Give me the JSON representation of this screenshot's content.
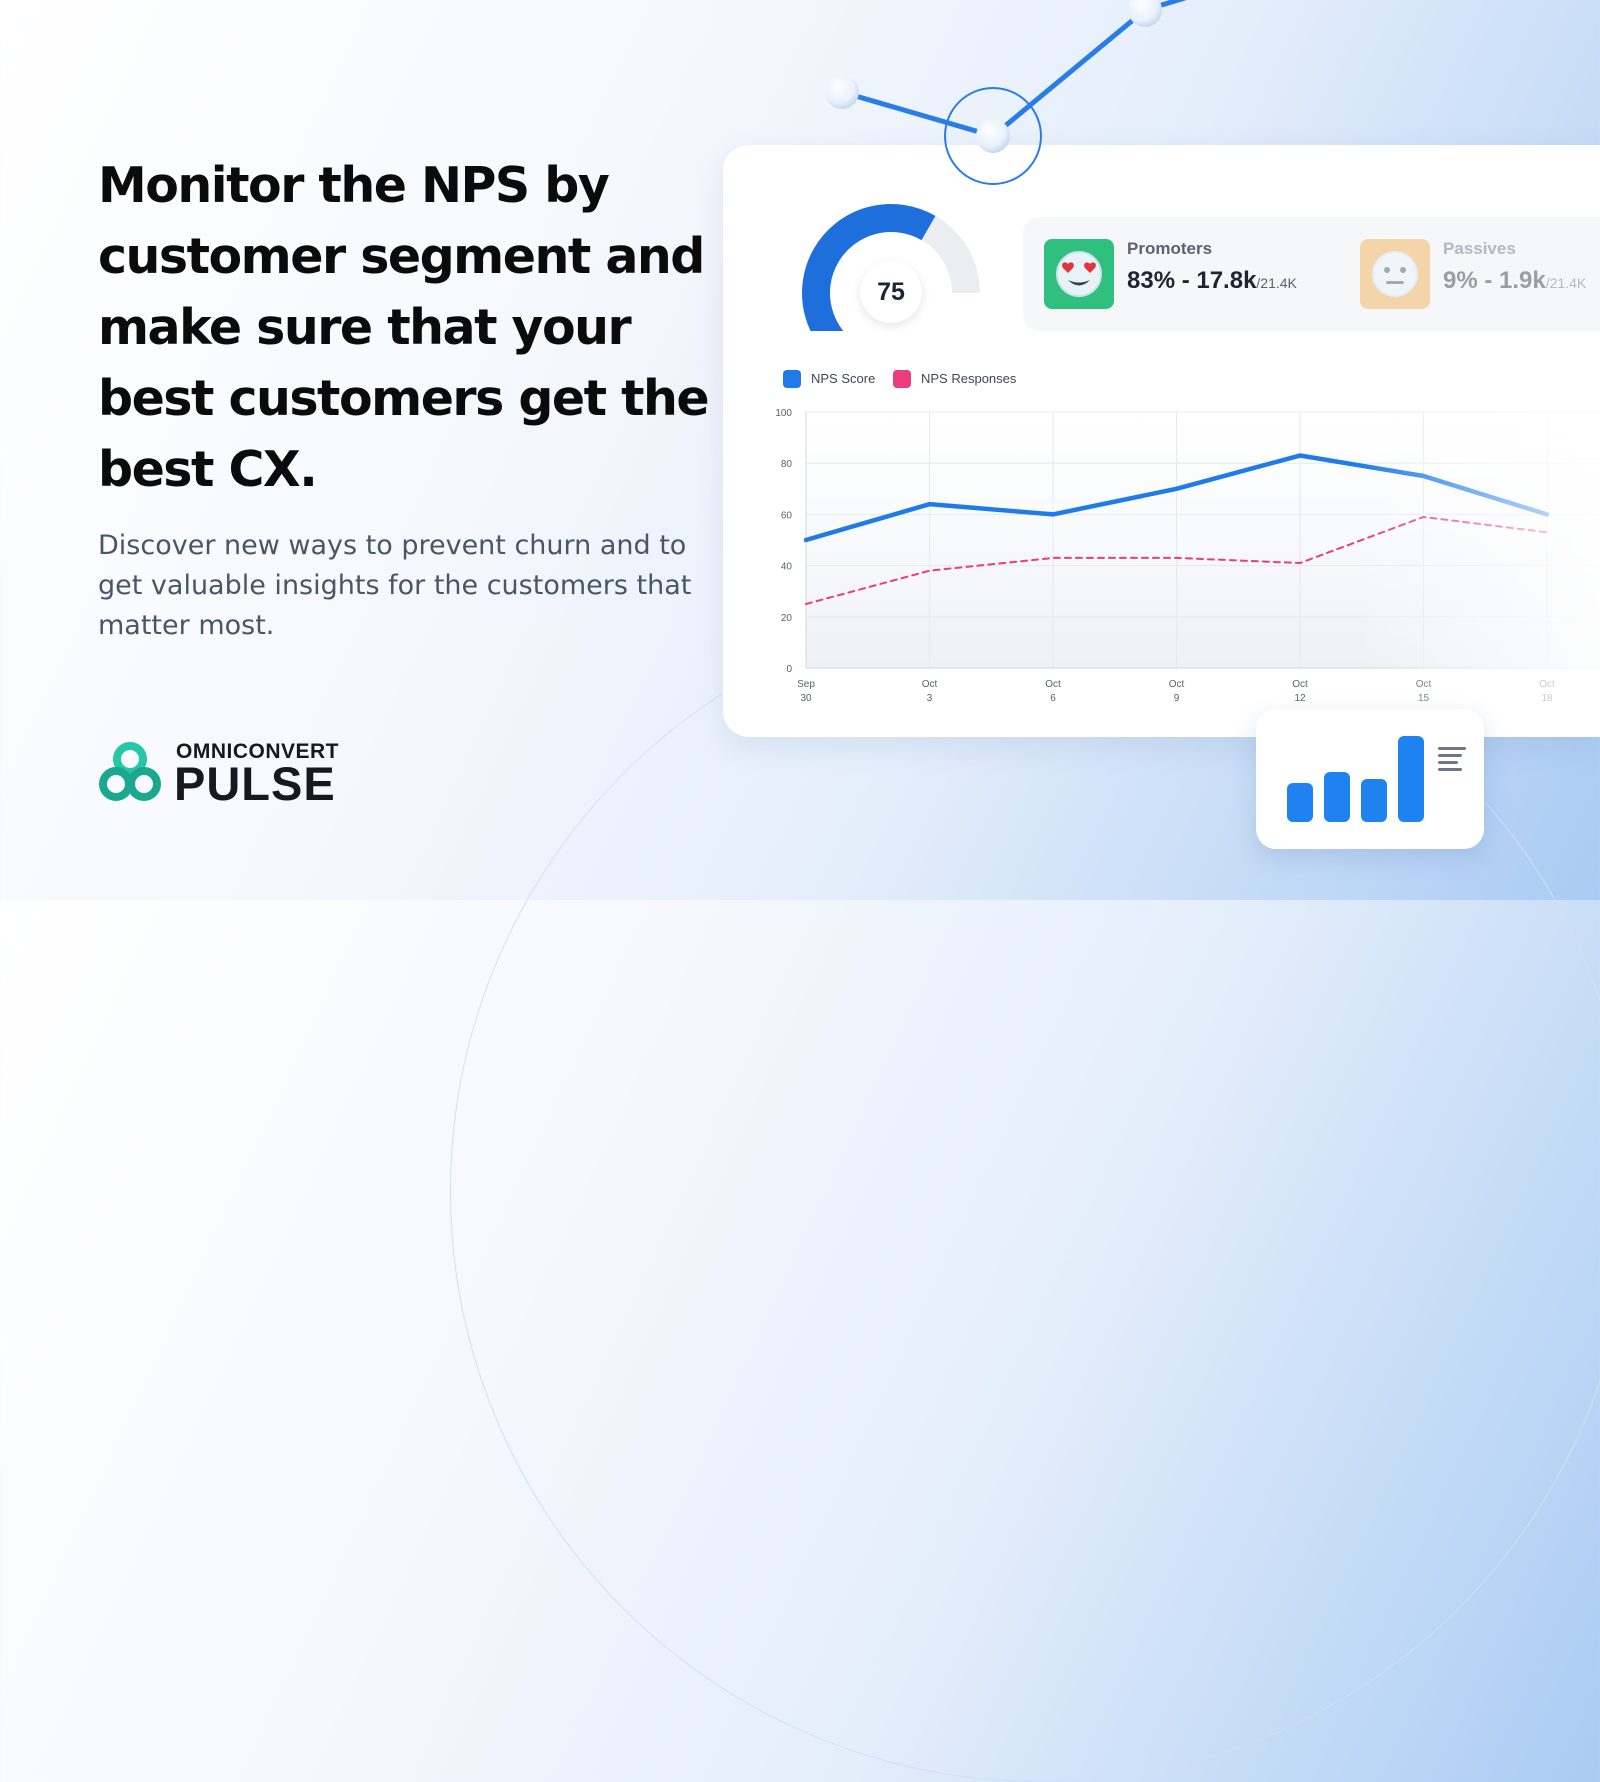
{
  "hero": {
    "headline": "Monitor the NPS by customer segment and make sure that your best customers get the best CX.",
    "subhead": "Discover new ways to prevent churn and to get valuable insights for the customers that matter most."
  },
  "logo": {
    "top_text": "OMNICONVERT",
    "main_text": "PULSE",
    "colors": [
      "#1aa88f",
      "#25c7a6"
    ]
  },
  "dashboard": {
    "gauge": {
      "value": "75",
      "fill_fraction": 0.75,
      "fill_color": "#1e6fdc",
      "track_color": "#ebedf1"
    },
    "stats": [
      {
        "icon": "heart-eyes-emoji-icon",
        "icon_bg": "#2fbf7f",
        "title": "Promoters",
        "value": "83% - 17.8k",
        "suffix": "/21.4K"
      },
      {
        "icon": "neutral-face-emoji-icon",
        "icon_bg": "#f2a53d",
        "title": "Passives",
        "value": "9% - 1.9k",
        "suffix": "/21.4K"
      }
    ]
  },
  "chart_data": {
    "type": "line",
    "title": "",
    "xlabel": "",
    "ylabel": "",
    "ylim": [
      0,
      100
    ],
    "yticks": [
      "0",
      "20",
      "40",
      "60",
      "80",
      "100"
    ],
    "x_ticks": [
      {
        "month": "Sep",
        "day": "30"
      },
      {
        "month": "Oct",
        "day": "3"
      },
      {
        "month": "Oct",
        "day": "6"
      },
      {
        "month": "Oct",
        "day": "9"
      },
      {
        "month": "Oct",
        "day": "12"
      },
      {
        "month": "Oct",
        "day": "15"
      },
      {
        "month": "Oct",
        "day": "18"
      }
    ],
    "grid": true,
    "legend_position": "top-left",
    "series": [
      {
        "name": "NPS Score",
        "color": "#1e7be8",
        "style": "solid",
        "x": [
          "Sep 30",
          "Oct 3",
          "Oct 6",
          "Oct 9",
          "Oct 12",
          "Oct 15",
          "Oct 18"
        ],
        "values": [
          50,
          64,
          60,
          70,
          83,
          75,
          60
        ]
      },
      {
        "name": "NPS Responses",
        "color": "#ea3c7e",
        "style": "dashed",
        "x": [
          "Sep 30",
          "Oct 3",
          "Oct 6",
          "Oct 9",
          "Oct 12",
          "Oct 15",
          "Oct 18"
        ],
        "values": [
          25,
          38,
          43,
          43,
          41,
          59,
          53
        ]
      }
    ]
  },
  "decoration": {
    "mini_chart_bars": [
      0.45,
      0.58,
      0.5,
      1.0
    ]
  }
}
